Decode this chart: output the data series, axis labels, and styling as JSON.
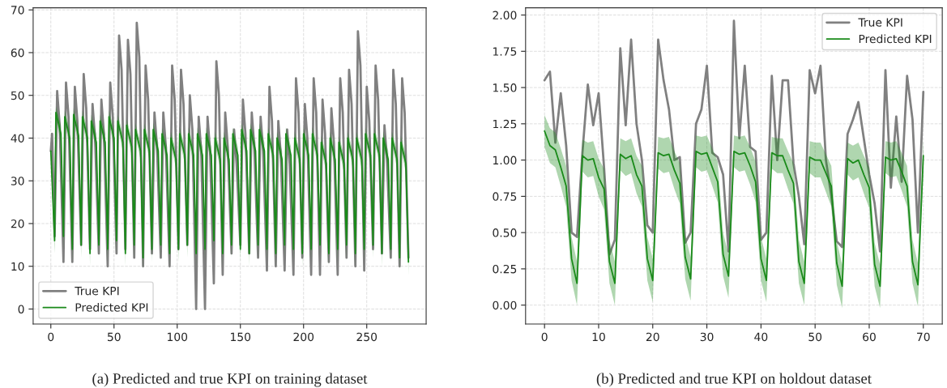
{
  "chart_data": [
    {
      "type": "line",
      "annotations": [
        "(a) Predicted and true KPI on training dataset"
      ],
      "legend": "bottom left",
      "grid": true,
      "xlim": [
        -14,
        297
      ],
      "xticks": [
        0,
        50,
        100,
        150,
        200,
        250
      ],
      "ylim": [
        -3.5,
        70.5
      ],
      "yticks": [
        0,
        10,
        20,
        30,
        40,
        50,
        60,
        70
      ],
      "series": [
        {
          "name": "True KPI",
          "color": "#808080",
          "x": [
            0,
            1,
            3,
            5,
            7,
            10,
            12,
            14,
            17,
            19,
            21,
            24,
            26,
            28,
            31,
            33,
            35,
            38,
            40,
            42,
            45,
            47,
            49,
            52,
            54,
            56,
            59,
            61,
            63,
            66,
            68,
            70,
            73,
            75,
            77,
            80,
            82,
            84,
            87,
            89,
            91,
            94,
            96,
            98,
            101,
            103,
            105,
            108,
            110,
            112,
            115,
            117,
            119,
            122,
            124,
            126,
            129,
            131,
            133,
            136,
            138,
            140,
            143,
            145,
            147,
            150,
            152,
            154,
            157,
            159,
            161,
            164,
            166,
            168,
            171,
            173,
            175,
            178,
            180,
            182,
            185,
            187,
            189,
            192,
            194,
            196,
            199,
            201,
            203,
            206,
            208,
            210,
            213,
            215,
            217,
            220,
            222,
            224,
            227,
            229,
            231,
            234,
            236,
            238,
            241,
            243,
            245,
            248,
            250,
            252,
            255,
            257,
            259,
            262,
            264,
            266,
            269,
            271,
            273,
            276,
            278,
            280,
            283
          ],
          "values": [
            37,
            41,
            17,
            51,
            43,
            11,
            53,
            45,
            11,
            52,
            44,
            15,
            55,
            47,
            14,
            48,
            40,
            13,
            49,
            41,
            10,
            53,
            45,
            13,
            64,
            56,
            14,
            63,
            55,
            12,
            67,
            59,
            10,
            57,
            49,
            13,
            46,
            38,
            12,
            46,
            38,
            10,
            57,
            49,
            14,
            56,
            48,
            15,
            50,
            42,
            0,
            45,
            37,
            0,
            45,
            37,
            6,
            58,
            50,
            8,
            46,
            38,
            13,
            42,
            34,
            15,
            49,
            41,
            13,
            46,
            38,
            12,
            45,
            37,
            9,
            52,
            44,
            10,
            44,
            36,
            9,
            42,
            34,
            8,
            54,
            46,
            12,
            48,
            40,
            8,
            54,
            46,
            8,
            49,
            41,
            11,
            47,
            39,
            8,
            54,
            46,
            12,
            56,
            48,
            10,
            65,
            57,
            9,
            52,
            44,
            14,
            57,
            49,
            13,
            43,
            35,
            12,
            56,
            48,
            10,
            54,
            46,
            12
          ]
        },
        {
          "name": "Predicted KPI",
          "color": "#1a8a1a",
          "x": [
            0,
            3,
            4,
            8,
            10,
            11,
            15,
            17,
            18,
            22,
            24,
            25,
            29,
            31,
            32,
            36,
            38,
            39,
            43,
            45,
            46,
            50,
            52,
            53,
            57,
            59,
            60,
            64,
            66,
            67,
            71,
            73,
            74,
            78,
            80,
            81,
            85,
            87,
            88,
            92,
            94,
            95,
            99,
            101,
            102,
            106,
            108,
            109,
            113,
            115,
            116,
            120,
            122,
            123,
            127,
            129,
            130,
            134,
            136,
            137,
            141,
            143,
            144,
            148,
            150,
            151,
            155,
            157,
            158,
            162,
            164,
            165,
            169,
            171,
            172,
            176,
            178,
            179,
            183,
            185,
            186,
            190,
            192,
            193,
            197,
            199,
            200,
            204,
            206,
            207,
            211,
            213,
            214,
            218,
            220,
            221,
            225,
            227,
            228,
            232,
            234,
            235,
            239,
            241,
            242,
            246,
            248,
            249,
            253,
            255,
            256,
            260,
            262,
            263,
            267,
            269,
            270,
            274,
            276,
            277,
            281,
            283
          ],
          "values": [
            37,
            16,
            46,
            41,
            17,
            45,
            40,
            14,
            45.5,
            40.5,
            15,
            45,
            40,
            13,
            44,
            39,
            15,
            44,
            39,
            14,
            45,
            40,
            16,
            44,
            39,
            13,
            43,
            38,
            15,
            42,
            37,
            12,
            42,
            37,
            14,
            42,
            37,
            15,
            41,
            36,
            13,
            40,
            35,
            14,
            41,
            36,
            15,
            41,
            36,
            13,
            41,
            36,
            14,
            41,
            36,
            16,
            40,
            35,
            13,
            40,
            35,
            15,
            41,
            36,
            14,
            42,
            37,
            13,
            42,
            37,
            15,
            42,
            37,
            14,
            41,
            36,
            13,
            40,
            35,
            15,
            41,
            36,
            14,
            40,
            35,
            13,
            41,
            36,
            14,
            41,
            36,
            15,
            39,
            34,
            13,
            40,
            35,
            14,
            39,
            34,
            15,
            40,
            35,
            13,
            40,
            35,
            14,
            41,
            36,
            15,
            41,
            36,
            13,
            40,
            35,
            14,
            40,
            35,
            12,
            39,
            34,
            11
          ],
          "lower": [
            35.5,
            13,
            44.5,
            39,
            14,
            43.5,
            38,
            11,
            44,
            38.5,
            12,
            43.5,
            38,
            10,
            42.5,
            37,
            12,
            42.5,
            37,
            11,
            43.5,
            38,
            13,
            42.5,
            37,
            10,
            41.5,
            36,
            12,
            40.5,
            35,
            9,
            40.5,
            35,
            11,
            40.5,
            35,
            12,
            39.5,
            34,
            10,
            38.5,
            33,
            11,
            39.5,
            34,
            12,
            39.5,
            34,
            10,
            39.5,
            34,
            11,
            39.5,
            34,
            13,
            38.5,
            33,
            10,
            38.5,
            33,
            12,
            39.5,
            34,
            11,
            40.5,
            35,
            10,
            40.5,
            35,
            12,
            40.5,
            35,
            11,
            39.5,
            34,
            10,
            38.5,
            33,
            12,
            39.5,
            34,
            11,
            38.5,
            33,
            10,
            39.5,
            34,
            11,
            39.5,
            34,
            12,
            37.5,
            32,
            10,
            38.5,
            33,
            11,
            37.5,
            32,
            12,
            38.5,
            33,
            10,
            38.5,
            33,
            11,
            39.5,
            34,
            12,
            39.5,
            34,
            10,
            38.5,
            33,
            11,
            38.5,
            33,
            9,
            37.5,
            32,
            8
          ],
          "upper": [
            38.5,
            19,
            47.5,
            43,
            20,
            46.5,
            42,
            17,
            47,
            42.5,
            18,
            46.5,
            42,
            16,
            45.5,
            41,
            18,
            45.5,
            41,
            17,
            46.5,
            42,
            19,
            45.5,
            41,
            16,
            44.5,
            40,
            18,
            43.5,
            39,
            15,
            43.5,
            39,
            17,
            43.5,
            39,
            18,
            42.5,
            38,
            16,
            41.5,
            37,
            17,
            42.5,
            38,
            18,
            42.5,
            38,
            16,
            42.5,
            38,
            17,
            42.5,
            38,
            19,
            41.5,
            37,
            16,
            41.5,
            37,
            18,
            42.5,
            38,
            17,
            43.5,
            39,
            16,
            43.5,
            39,
            18,
            43.5,
            39,
            17,
            42.5,
            38,
            16,
            41.5,
            37,
            18,
            42.5,
            38,
            17,
            41.5,
            37,
            16,
            42.5,
            38,
            17,
            42.5,
            38,
            18,
            40.5,
            36,
            16,
            41.5,
            37,
            17,
            40.5,
            36,
            18,
            41.5,
            37,
            16,
            41.5,
            37,
            17,
            42.5,
            38,
            18,
            42.5,
            38,
            16,
            41.5,
            37,
            17,
            41.5,
            37,
            15,
            40.5,
            36,
            14
          ]
        }
      ]
    },
    {
      "type": "line",
      "annotations": [
        "(b) Predicted and true KPI on holdout dataset"
      ],
      "legend": "top right",
      "grid": true,
      "xlim": [
        -3.5,
        73.5
      ],
      "xticks": [
        0,
        10,
        20,
        30,
        40,
        50,
        60,
        70
      ],
      "ylim": [
        -0.13,
        2.05
      ],
      "yticks": [
        {
          "value": 0,
          "label": "0.00"
        },
        {
          "value": 0.25,
          "label": "0.25"
        },
        {
          "value": 0.5,
          "label": "0.50"
        },
        {
          "value": 0.75,
          "label": "0.75"
        },
        {
          "value": 1,
          "label": "1.00"
        },
        {
          "value": 1.25,
          "label": "1.25"
        },
        {
          "value": 1.5,
          "label": "1.50"
        },
        {
          "value": 1.75,
          "label": "1.75"
        },
        {
          "value": 2,
          "label": "2.00"
        }
      ],
      "series": [
        {
          "name": "True KPI",
          "color": "#808080",
          "x": [
            0,
            1,
            2,
            3,
            4,
            5,
            6,
            7,
            8,
            9,
            10,
            11,
            12,
            13,
            14,
            15,
            16,
            17,
            18,
            19,
            20,
            21,
            22,
            23,
            24,
            25,
            26,
            27,
            28,
            29,
            30,
            31,
            32,
            33,
            34,
            35,
            36,
            37,
            38,
            39,
            40,
            41,
            42,
            43,
            44,
            45,
            46,
            47,
            48,
            49,
            50,
            51,
            52,
            53,
            54,
            55,
            56,
            57,
            58,
            59,
            60,
            61,
            62,
            63,
            64,
            65,
            66,
            67,
            68,
            69,
            70
          ],
          "values": [
            1.55,
            1.61,
            1.12,
            1.46,
            1.1,
            0.5,
            0.47,
            1.05,
            1.52,
            1.24,
            1.46,
            0.95,
            0.35,
            0.45,
            1.77,
            1.24,
            1.83,
            1.25,
            1.0,
            0.55,
            0.5,
            1.83,
            1.55,
            1.35,
            1.0,
            1.02,
            0.43,
            0.5,
            1.25,
            1.35,
            1.65,
            1.05,
            1.02,
            0.9,
            0.37,
            1.96,
            1.15,
            1.65,
            1.09,
            1.06,
            0.45,
            0.5,
            1.58,
            1.0,
            1.55,
            1.55,
            0.98,
            0.75,
            0.42,
            1.62,
            1.46,
            1.65,
            1.0,
            0.75,
            0.44,
            0.4,
            1.18,
            1.28,
            1.4,
            1.15,
            0.9,
            0.7,
            0.37,
            1.62,
            0.81,
            1.3,
            0.85,
            1.58,
            1.28,
            0.5,
            1.47
          ]
        },
        {
          "name": "Predicted KPI",
          "color": "#1a8a1a",
          "x": [
            0,
            1,
            2,
            3,
            4,
            5,
            6,
            7,
            8,
            9,
            10,
            11,
            12,
            13,
            14,
            15,
            16,
            17,
            18,
            19,
            20,
            21,
            22,
            23,
            24,
            25,
            26,
            27,
            28,
            29,
            30,
            31,
            32,
            33,
            34,
            35,
            36,
            37,
            38,
            39,
            40,
            41,
            42,
            43,
            44,
            45,
            46,
            47,
            48,
            49,
            50,
            51,
            52,
            53,
            54,
            55,
            56,
            57,
            58,
            59,
            60,
            61,
            62,
            63,
            64,
            65,
            66,
            67,
            68,
            69,
            70
          ],
          "values": [
            1.2,
            1.1,
            1.07,
            0.95,
            0.82,
            0.32,
            0.15,
            1.03,
            1.0,
            1.01,
            0.88,
            0.8,
            0.3,
            0.15,
            1.04,
            1.01,
            1.03,
            0.9,
            0.82,
            0.32,
            0.17,
            1.05,
            1.03,
            1.04,
            0.93,
            0.84,
            0.33,
            0.18,
            1.06,
            1.04,
            1.05,
            0.95,
            0.85,
            0.35,
            0.2,
            1.06,
            1.04,
            1.05,
            0.96,
            0.85,
            0.32,
            0.17,
            1.05,
            1.03,
            1.03,
            0.93,
            0.84,
            0.3,
            0.15,
            1.02,
            1.0,
            1.0,
            0.91,
            0.82,
            0.29,
            0.13,
            1.01,
            0.98,
            1.0,
            0.9,
            0.81,
            0.28,
            0.13,
            1.02,
            1.0,
            1.01,
            0.92,
            0.82,
            0.3,
            0.14,
            1.03
          ],
          "lower": [
            1.09,
            0.98,
            0.95,
            0.82,
            0.68,
            0.17,
            0.0,
            0.92,
            0.88,
            0.89,
            0.75,
            0.66,
            0.15,
            0.0,
            0.93,
            0.89,
            0.91,
            0.77,
            0.68,
            0.17,
            0.02,
            0.94,
            0.91,
            0.92,
            0.8,
            0.7,
            0.18,
            0.03,
            0.95,
            0.92,
            0.93,
            0.82,
            0.71,
            0.2,
            0.05,
            0.95,
            0.92,
            0.93,
            0.83,
            0.71,
            0.17,
            0.02,
            0.94,
            0.91,
            0.91,
            0.8,
            0.7,
            0.15,
            0.0,
            0.91,
            0.88,
            0.88,
            0.78,
            0.68,
            0.14,
            -0.02,
            0.9,
            0.86,
            0.88,
            0.77,
            0.67,
            0.13,
            -0.02,
            0.91,
            0.88,
            0.89,
            0.79,
            0.68,
            0.15,
            -0.01,
            0.92
          ],
          "upper": [
            1.31,
            1.22,
            1.19,
            1.08,
            0.96,
            0.47,
            0.3,
            1.14,
            1.12,
            1.13,
            1.01,
            0.94,
            0.45,
            0.3,
            1.15,
            1.13,
            1.15,
            1.03,
            0.96,
            0.47,
            0.32,
            1.16,
            1.15,
            1.16,
            1.06,
            0.98,
            0.48,
            0.33,
            1.17,
            1.16,
            1.17,
            1.08,
            0.99,
            0.5,
            0.35,
            1.17,
            1.16,
            1.17,
            1.09,
            0.99,
            0.47,
            0.32,
            1.16,
            1.15,
            1.15,
            1.06,
            0.98,
            0.45,
            0.3,
            1.13,
            1.12,
            1.12,
            1.04,
            0.96,
            0.44,
            0.28,
            1.12,
            1.1,
            1.12,
            1.03,
            0.95,
            0.43,
            0.28,
            1.13,
            1.12,
            1.13,
            1.05,
            0.96,
            0.45,
            0.29,
            1.14
          ]
        }
      ]
    }
  ]
}
